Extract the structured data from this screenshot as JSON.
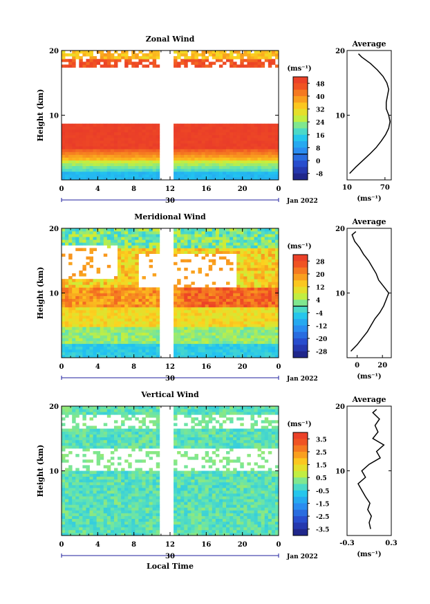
{
  "chart_data": [
    {
      "type": "heatmap",
      "title": "Zonal Wind",
      "xlabel": "",
      "ylabel": "Height (km)",
      "x_ticks": [
        "0",
        "4",
        "8",
        "12",
        "16",
        "20",
        "0"
      ],
      "y_ticks": [
        "10",
        "20"
      ],
      "date_label": "30",
      "date_suffix": "Jan 2022",
      "colorbar": {
        "unit": "(ms⁻¹)",
        "ticks": [
          "48",
          "40",
          "32",
          "24",
          "16",
          "8",
          "0",
          "-8"
        ],
        "range": [
          -12,
          52
        ]
      },
      "profile": {
        "title": "Average",
        "xlabel": "(ms⁻¹)",
        "x_ticks": [
          "10",
          "70"
        ],
        "xlim": [
          10,
          80
        ],
        "y_ticks": [
          "10",
          "20"
        ],
        "heights": [
          1,
          2,
          3,
          4,
          5,
          6,
          7,
          8,
          9,
          10,
          11,
          12,
          13,
          14,
          15,
          16,
          17,
          18,
          19,
          19.5
        ],
        "values": [
          14,
          24,
          35,
          46,
          56,
          64,
          71,
          76,
          78,
          76,
          72,
          72,
          74,
          76,
          73,
          67,
          58,
          47,
          33,
          28
        ]
      }
    },
    {
      "type": "heatmap",
      "title": "Meridional Wind",
      "xlabel": "",
      "ylabel": "Height (km)",
      "x_ticks": [
        "0",
        "4",
        "8",
        "12",
        "16",
        "20",
        "0"
      ],
      "y_ticks": [
        "10",
        "20"
      ],
      "date_label": "30",
      "date_suffix": "Jan 2022",
      "colorbar": {
        "unit": "(ms⁻¹)",
        "ticks": [
          "28",
          "20",
          "12",
          "4",
          "-4",
          "-12",
          "-20",
          "-28"
        ],
        "range": [
          -32,
          32
        ]
      },
      "profile": {
        "title": "Average",
        "xlabel": "(ms⁻¹)",
        "x_ticks": [
          "0",
          "20"
        ],
        "xlim": [
          -8,
          27
        ],
        "y_ticks": [
          "10",
          "20"
        ],
        "heights": [
          1,
          2,
          3,
          4,
          5,
          6,
          7,
          8,
          9,
          10,
          11,
          12,
          13,
          14,
          15,
          16,
          17,
          18,
          19,
          19.5
        ],
        "values": [
          -5,
          0,
          4,
          8,
          11,
          14,
          18,
          21,
          23,
          25,
          21,
          17,
          15,
          12,
          9,
          5,
          2,
          -2,
          -4,
          -1
        ]
      }
    },
    {
      "type": "heatmap",
      "title": "Vertical Wind",
      "xlabel": "Local Time",
      "ylabel": "Height (km)",
      "x_ticks": [
        "0",
        "4",
        "8",
        "12",
        "16",
        "20",
        "0"
      ],
      "y_ticks": [
        "10",
        "20"
      ],
      "date_label": "30",
      "date_suffix": "Jan 2022",
      "colorbar": {
        "unit": "(ms⁻¹)",
        "ticks": [
          "3.5",
          "2.5",
          "1.5",
          "0.5",
          "-0.5",
          "-1.5",
          "-2.5",
          "-3.5"
        ],
        "range": [
          -4,
          4
        ]
      },
      "profile": {
        "title": "Average",
        "xlabel": "(ms⁻¹)",
        "x_ticks": [
          "-0.3",
          "0.3"
        ],
        "xlim": [
          -0.3,
          0.3
        ],
        "y_ticks": [
          "10",
          "20"
        ],
        "heights": [
          1,
          2,
          3,
          4,
          5,
          6,
          7,
          8,
          9,
          10,
          11,
          12,
          13,
          14,
          15,
          16,
          17,
          18,
          19,
          19.5
        ],
        "values": [
          0.02,
          0.0,
          0.03,
          -0.02,
          0.01,
          -0.05,
          -0.1,
          -0.15,
          -0.05,
          -0.1,
          0.0,
          0.15,
          0.1,
          0.2,
          0.05,
          0.12,
          0.08,
          0.14,
          0.05,
          0.1
        ]
      }
    }
  ]
}
